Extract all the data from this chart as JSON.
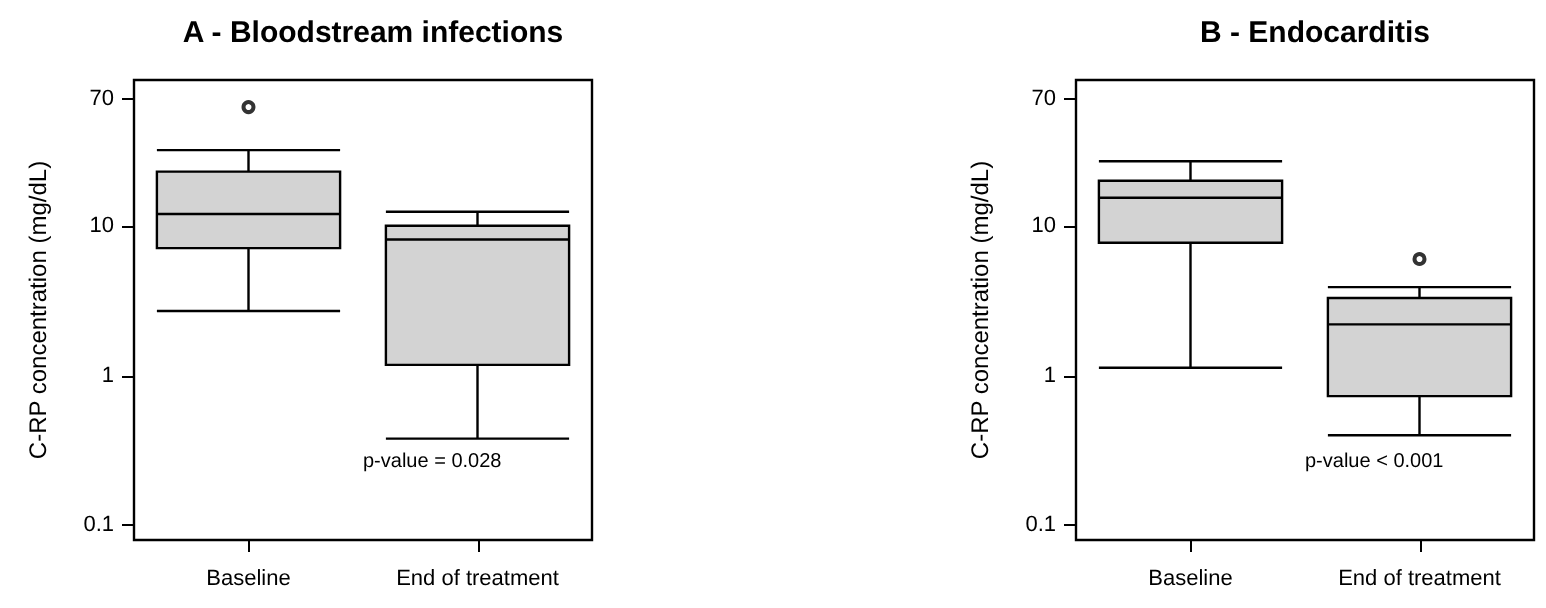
{
  "chart_data": [
    {
      "type": "box",
      "title": "A - Bloodstream infections",
      "ylabel": "C-RP concentration (mg/dL)",
      "categories": [
        "Baseline",
        "End of treatment"
      ],
      "color": "#d3d3d3",
      "log": true,
      "ylim": [
        0.08,
        94
      ],
      "yticks": [
        0.1,
        1,
        10,
        70
      ],
      "annotations": [
        "p-value = 0.028"
      ],
      "boxes": [
        {
          "low": 2.7,
          "q1": 7.1,
          "median": 12,
          "q3": 23,
          "high": 32,
          "outliers": [
            62
          ]
        },
        {
          "low": 0.38,
          "q1": 1.18,
          "median": 8.1,
          "q3": 10,
          "high": 12.4
        }
      ]
    },
    {
      "type": "box",
      "title": "B - Endocarditis",
      "ylabel": "C-RP concentration (mg/dL)",
      "categories": [
        "Baseline",
        "End of treatment"
      ],
      "color": "#d3d3d3",
      "log": true,
      "ylim": [
        0.08,
        94
      ],
      "yticks": [
        0.1,
        1,
        10,
        70
      ],
      "annotations": [
        "p-value < 0.001"
      ],
      "boxes": [
        {
          "low": 1.13,
          "q1": 7.7,
          "median": 15.4,
          "q3": 20,
          "high": 27
        },
        {
          "low": 0.4,
          "q1": 0.73,
          "median": 2.2,
          "q3": 3.3,
          "high": 3.9,
          "outliers": [
            6
          ]
        }
      ]
    }
  ]
}
